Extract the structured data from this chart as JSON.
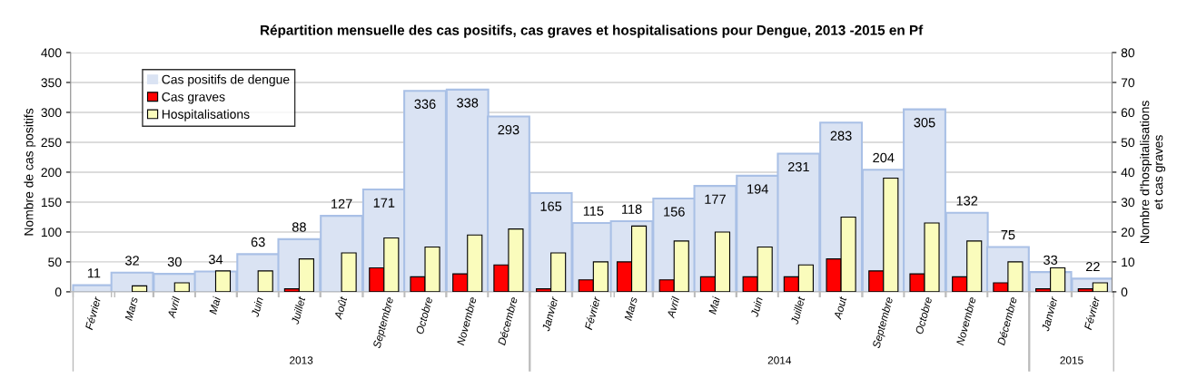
{
  "chart_data": {
    "type": "bar",
    "title": "Répartition mensuelle des cas positifs, cas graves et hospitalisations pour Dengue, 2013 -2015 en Pf",
    "ylabel": "Nombre de cas positifs",
    "y2label": "Nombre d'hospitalisations\net cas graves",
    "x": [
      "2013-02",
      "2013-03",
      "2013-04",
      "2013-05",
      "2013-06",
      "2013-07",
      "2013-08",
      "2013-09",
      "2013-10",
      "2013-11",
      "2013-12",
      "2014-01",
      "2014-02",
      "2014-03",
      "2014-04",
      "2014-05",
      "2014-06",
      "2014-07",
      "2014-08",
      "2014-09",
      "2014-10",
      "2014-11",
      "2014-12",
      "2015-01",
      "2015-02"
    ],
    "xticks": [
      {
        "value": "2013-02",
        "label": "Février"
      },
      {
        "value": "2013-03",
        "label": "Mars"
      },
      {
        "value": "2013-04",
        "label": "Avril"
      },
      {
        "value": "2013-05",
        "label": "Mai"
      },
      {
        "value": "2013-06",
        "label": "Juin"
      },
      {
        "value": "2013-07",
        "label": "Juillet"
      },
      {
        "value": "2013-08",
        "label": "Août"
      },
      {
        "value": "2013-09",
        "label": "Septembre"
      },
      {
        "value": "2013-10",
        "label": "Octobre"
      },
      {
        "value": "2013-11",
        "label": "Novembre"
      },
      {
        "value": "2013-12",
        "label": "Décembre"
      },
      {
        "value": "2014-01",
        "label": "Janvier"
      },
      {
        "value": "2014-02",
        "label": "Février"
      },
      {
        "value": "2014-03",
        "label": "Mars"
      },
      {
        "value": "2014-04",
        "label": "Avril"
      },
      {
        "value": "2014-05",
        "label": "Mai"
      },
      {
        "value": "2014-06",
        "label": "Juin"
      },
      {
        "value": "2014-07",
        "label": "Juillet"
      },
      {
        "value": "2014-08",
        "label": "Aout"
      },
      {
        "value": "2014-09",
        "label": "Septembre"
      },
      {
        "value": "2014-10",
        "label": "Octobre"
      },
      {
        "value": "2014-11",
        "label": "Novembre"
      },
      {
        "value": "2014-12",
        "label": "Décembre"
      },
      {
        "value": "2015-01",
        "label": "Janvier"
      },
      {
        "value": "2015-02",
        "label": "Février"
      }
    ],
    "series": [
      {
        "name": "Cas positifs de dengue",
        "color": "#dae3f3",
        "values": [
          11,
          32,
          30,
          34,
          63,
          88,
          127,
          171,
          336,
          338,
          293,
          165,
          115,
          118,
          156,
          177,
          194,
          231,
          283,
          204,
          305,
          132,
          75,
          33,
          22
        ],
        "value_labels": [
          "11",
          "32",
          "30",
          "34",
          "63",
          "88",
          "127",
          "171",
          "336",
          "338",
          "293",
          "165",
          "115",
          "118",
          "156",
          "177",
          "194",
          "231",
          "283",
          "204",
          "305",
          "132",
          "75",
          "33",
          "22"
        ]
      },
      {
        "name": "Cas graves",
        "color": "#ff0000",
        "axis": "y2",
        "values": [
          null,
          null,
          null,
          null,
          null,
          1,
          null,
          8,
          5,
          6,
          9,
          1,
          4,
          10,
          4,
          5,
          5,
          5,
          11,
          7,
          6,
          5,
          3,
          1,
          1
        ]
      },
      {
        "name": "Hospitalisations",
        "color": "#fafcbc",
        "axis": "y2",
        "values": [
          null,
          2,
          3,
          7,
          7,
          11,
          13,
          18,
          15,
          19,
          21,
          13,
          10,
          22,
          17,
          20,
          15,
          9,
          25,
          38,
          23,
          17,
          10,
          8,
          3
        ]
      }
    ],
    "xlim": [
      "2013-01-15",
      "2015-02-15"
    ],
    "ylim": [
      0,
      400
    ],
    "yticks": [
      0,
      50,
      100,
      150,
      200,
      250,
      300,
      350,
      400
    ],
    "y2lim": [
      0,
      80
    ],
    "y2ticks": [
      0,
      10,
      20,
      30,
      40,
      50,
      60,
      70,
      80
    ],
    "grid": "y",
    "legend": "top left",
    "annotations": [
      "2013",
      "2014",
      "2015"
    ]
  }
}
